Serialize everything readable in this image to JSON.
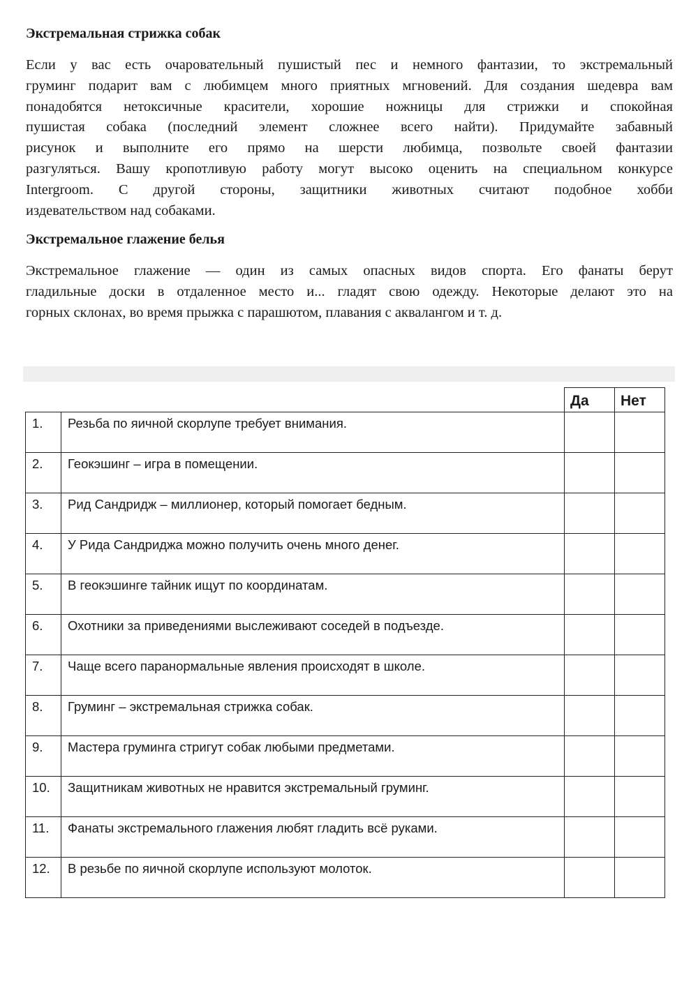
{
  "section1": {
    "title": "Экстремальная стрижка собак",
    "lines": [
      "Если у вас есть очаровательный пушистый пес и немного фантазии, то экстремальный",
      "груминг подарит вам с любимцем много приятных мгновений. Для создания шедевра вам",
      "понадобятся нетоксичные красители, хорошие ножницы для стрижки и спокойная",
      "пушистая собака (последний элемент сложнее всего найти). Придумайте забавный",
      "рисунок и выполните его прямо на шерсти любимца, позвольте своей фантазии",
      "разгуляться. Вашу кропотливую работу могут высоко оценить на специальном конкурсе",
      "Intergroom. С другой стороны, защитники животных считают подобное хобби",
      "издевательством над собаками."
    ]
  },
  "section2": {
    "title": "Экстремальное глажение белья",
    "lines": [
      "Экстремальное глажение — один из самых опасных видов спорта. Его фанаты берут",
      "гладильные доски в отдаленное место и... гладят свою одежду. Некоторые делают это на",
      "горных склонах, во время прыжка с парашютом, плавания с аквалангом и т. д."
    ]
  },
  "table": {
    "header_yes": "Да",
    "header_no": "Нет",
    "rows": [
      {
        "num": "1.",
        "text": "Резьба по яичной скорлупе требует внимания."
      },
      {
        "num": "2.",
        "text": "Геокэшинг – игра в помещении."
      },
      {
        "num": "3.",
        "text": "Рид Сандридж – миллионер, который помогает бедным."
      },
      {
        "num": "4.",
        "text": "У Рида Сандриджа можно получить очень много денег."
      },
      {
        "num": "5.",
        "text": "В геокэшинге тайник ищут по координатам."
      },
      {
        "num": "6.",
        "text": "Охотники за приведениями выслеживают соседей в подъезде."
      },
      {
        "num": "7.",
        "text": "Чаще всего паранормальные явления происходят в школе."
      },
      {
        "num": "8.",
        "text": "Груминг – экстремальная стрижка собак."
      },
      {
        "num": "9.",
        "text": "Мастера груминга стригут собак любыми предметами."
      },
      {
        "num": "10.",
        "text": "Защитникам животных не нравится экстремальный груминг."
      },
      {
        "num": "11.",
        "text": "Фанаты экстремального глажения любят гладить всё руками."
      },
      {
        "num": "12.",
        "text": "В резьбе по яичной скорлупе используют молоток."
      }
    ]
  }
}
